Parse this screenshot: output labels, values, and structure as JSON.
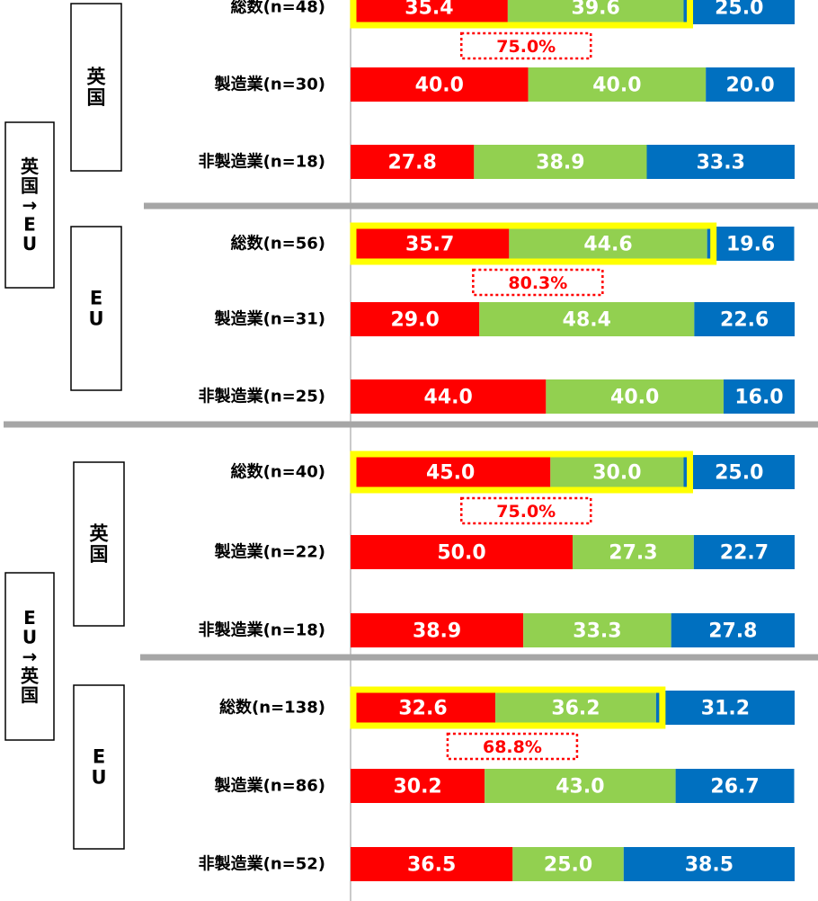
{
  "colors": {
    "seg1": "#ff0000",
    "seg2": "#92d050",
    "seg3": "#0070c0",
    "highlight": "#ffff00",
    "callout_border": "#ff0000",
    "callout_text": "#ff0000",
    "separator": "#a6a6a6",
    "axis": "#a6a6a6"
  },
  "chart_data": {
    "type": "bar",
    "orientation": "horizontal",
    "stacked": true,
    "xlim": [
      0,
      100
    ],
    "sections": [
      {
        "direction": "英国→EU",
        "groups": [
          {
            "region": "英国",
            "combined_share": "75.0%",
            "rows": [
              {
                "label": "総数(n=48)",
                "values": [
                  35.4,
                  39.6,
                  25.0
                ]
              },
              {
                "label": "製造業(n=30)",
                "values": [
                  40.0,
                  40.0,
                  20.0
                ]
              },
              {
                "label": "非製造業(n=18)",
                "values": [
                  27.8,
                  38.9,
                  33.3
                ]
              }
            ]
          },
          {
            "region": "EU",
            "combined_share": "80.3%",
            "rows": [
              {
                "label": "総数(n=56)",
                "values": [
                  35.7,
                  44.6,
                  19.6
                ]
              },
              {
                "label": "製造業(n=31)",
                "values": [
                  29.0,
                  48.4,
                  22.6
                ]
              },
              {
                "label": "非製造業(n=25)",
                "values": [
                  44.0,
                  40.0,
                  16.0
                ]
              }
            ]
          }
        ]
      },
      {
        "direction": "EU→英国",
        "groups": [
          {
            "region": "英国",
            "combined_share": "75.0%",
            "rows": [
              {
                "label": "総数(n=40)",
                "values": [
                  45.0,
                  30.0,
                  25.0
                ]
              },
              {
                "label": "製造業(n=22)",
                "values": [
                  50.0,
                  27.3,
                  22.7
                ]
              },
              {
                "label": "非製造業(n=18)",
                "values": [
                  38.9,
                  33.3,
                  27.8
                ]
              }
            ]
          },
          {
            "region": "EU",
            "combined_share": "68.8%",
            "rows": [
              {
                "label": "総数(n=138)",
                "values": [
                  32.6,
                  36.2,
                  31.2
                ]
              },
              {
                "label": "製造業(n=86)",
                "values": [
                  30.2,
                  43.0,
                  26.7
                ]
              },
              {
                "label": "非製造業(n=52)",
                "values": [
                  36.5,
                  25.0,
                  38.5
                ]
              }
            ]
          }
        ]
      }
    ]
  }
}
